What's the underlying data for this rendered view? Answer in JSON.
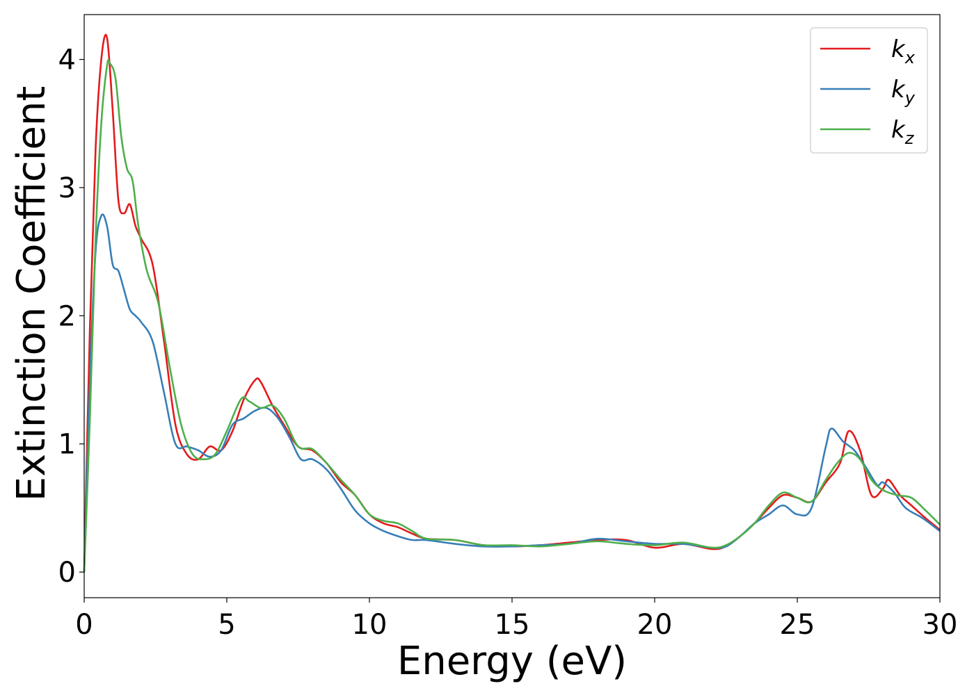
{
  "chart_data": {
    "type": "line",
    "xlabel": "Energy (eV)",
    "ylabel": "Extinction Coefficient",
    "xlim": [
      0,
      30
    ],
    "ylim": [
      -0.2,
      4.35
    ],
    "xticks": [
      "0",
      "5",
      "10",
      "15",
      "20",
      "25",
      "30"
    ],
    "yticks": [
      "0",
      "1",
      "2",
      "3",
      "4"
    ],
    "grid": false,
    "legend_position": "top-right",
    "series": [
      {
        "name": "k_x",
        "label_base": "k",
        "label_sub": "x",
        "color": "#e41a1c",
        "x": [
          0,
          0.2,
          0.4,
          0.6,
          0.8,
          1.0,
          1.2,
          1.4,
          1.6,
          1.8,
          2.0,
          2.4,
          2.8,
          3.2,
          3.6,
          4.0,
          4.4,
          4.8,
          5.2,
          5.6,
          6.0,
          6.2,
          6.6,
          7.0,
          7.5,
          8.0,
          8.5,
          9.0,
          9.5,
          10.0,
          10.5,
          11.0,
          11.5,
          12.0,
          13.0,
          14.0,
          15.0,
          16.0,
          17.0,
          18.0,
          19.0,
          20.0,
          21.0,
          22.0,
          22.5,
          23.0,
          23.5,
          24.0,
          24.5,
          25.0,
          25.5,
          26.0,
          26.5,
          26.8,
          27.2,
          27.6,
          28.0,
          28.2,
          28.6,
          29.0,
          29.5,
          30.0
        ],
        "values": [
          0.0,
          1.9,
          3.3,
          4.0,
          4.17,
          3.6,
          2.9,
          2.8,
          2.87,
          2.7,
          2.6,
          2.4,
          1.8,
          1.15,
          0.92,
          0.88,
          0.98,
          0.95,
          1.1,
          1.35,
          1.5,
          1.48,
          1.3,
          1.15,
          0.98,
          0.95,
          0.85,
          0.7,
          0.6,
          0.45,
          0.38,
          0.35,
          0.3,
          0.26,
          0.25,
          0.21,
          0.2,
          0.21,
          0.23,
          0.25,
          0.25,
          0.19,
          0.22,
          0.18,
          0.2,
          0.28,
          0.38,
          0.5,
          0.6,
          0.58,
          0.55,
          0.7,
          0.85,
          1.1,
          0.95,
          0.6,
          0.65,
          0.72,
          0.6,
          0.52,
          0.42,
          0.33
        ]
      },
      {
        "name": "k_y",
        "label_base": "k",
        "label_sub": "y",
        "color": "#377eb8",
        "x": [
          0,
          0.2,
          0.4,
          0.6,
          0.8,
          1.0,
          1.2,
          1.4,
          1.6,
          1.8,
          2.0,
          2.4,
          2.8,
          3.2,
          3.6,
          4.0,
          4.4,
          4.8,
          5.2,
          5.6,
          6.0,
          6.4,
          6.8,
          7.2,
          7.6,
          8.0,
          8.5,
          9.0,
          9.5,
          10.0,
          10.5,
          11.0,
          11.5,
          12.0,
          13.0,
          14.0,
          15.0,
          16.0,
          17.0,
          18.0,
          19.0,
          20.0,
          21.0,
          22.0,
          22.5,
          23.0,
          23.5,
          24.0,
          24.5,
          25.0,
          25.5,
          26.0,
          26.2,
          26.6,
          27.0,
          27.4,
          27.8,
          28.0,
          28.4,
          28.8,
          29.4,
          30.0
        ],
        "values": [
          0.0,
          1.5,
          2.5,
          2.78,
          2.7,
          2.4,
          2.35,
          2.2,
          2.05,
          2.0,
          1.95,
          1.8,
          1.4,
          1.0,
          0.98,
          0.95,
          0.9,
          0.95,
          1.15,
          1.2,
          1.26,
          1.28,
          1.2,
          1.05,
          0.88,
          0.88,
          0.8,
          0.65,
          0.48,
          0.38,
          0.32,
          0.28,
          0.25,
          0.25,
          0.22,
          0.2,
          0.2,
          0.21,
          0.22,
          0.26,
          0.24,
          0.22,
          0.22,
          0.19,
          0.2,
          0.28,
          0.38,
          0.45,
          0.52,
          0.45,
          0.5,
          0.98,
          1.12,
          1.02,
          0.95,
          0.82,
          0.68,
          0.7,
          0.62,
          0.5,
          0.42,
          0.32
        ]
      },
      {
        "name": "k_z",
        "label_base": "k",
        "label_sub": "z",
        "color": "#4daf4a",
        "x": [
          0,
          0.2,
          0.4,
          0.6,
          0.8,
          0.9,
          1.1,
          1.3,
          1.5,
          1.7,
          1.9,
          2.2,
          2.6,
          3.0,
          3.4,
          3.8,
          4.2,
          4.6,
          5.0,
          5.5,
          5.8,
          6.2,
          6.6,
          7.0,
          7.5,
          8.0,
          8.5,
          9.0,
          9.5,
          10.0,
          10.5,
          11.0,
          11.5,
          12.0,
          13.0,
          14.0,
          15.0,
          16.0,
          17.0,
          18.0,
          19.0,
          20.0,
          21.0,
          22.0,
          22.5,
          23.0,
          23.5,
          24.0,
          24.5,
          25.0,
          25.5,
          26.0,
          26.4,
          26.8,
          27.2,
          27.6,
          28.0,
          28.5,
          29.0,
          29.5,
          30.0
        ],
        "values": [
          0.0,
          1.2,
          2.6,
          3.5,
          3.95,
          3.97,
          3.85,
          3.4,
          3.15,
          3.05,
          2.7,
          2.35,
          2.1,
          1.6,
          1.15,
          0.92,
          0.88,
          0.92,
          1.1,
          1.35,
          1.33,
          1.28,
          1.3,
          1.2,
          0.98,
          0.96,
          0.85,
          0.72,
          0.6,
          0.45,
          0.4,
          0.38,
          0.32,
          0.26,
          0.25,
          0.21,
          0.21,
          0.2,
          0.22,
          0.24,
          0.22,
          0.21,
          0.23,
          0.19,
          0.21,
          0.28,
          0.38,
          0.52,
          0.62,
          0.58,
          0.55,
          0.72,
          0.85,
          0.93,
          0.88,
          0.72,
          0.64,
          0.6,
          0.58,
          0.48,
          0.37
        ]
      }
    ]
  }
}
